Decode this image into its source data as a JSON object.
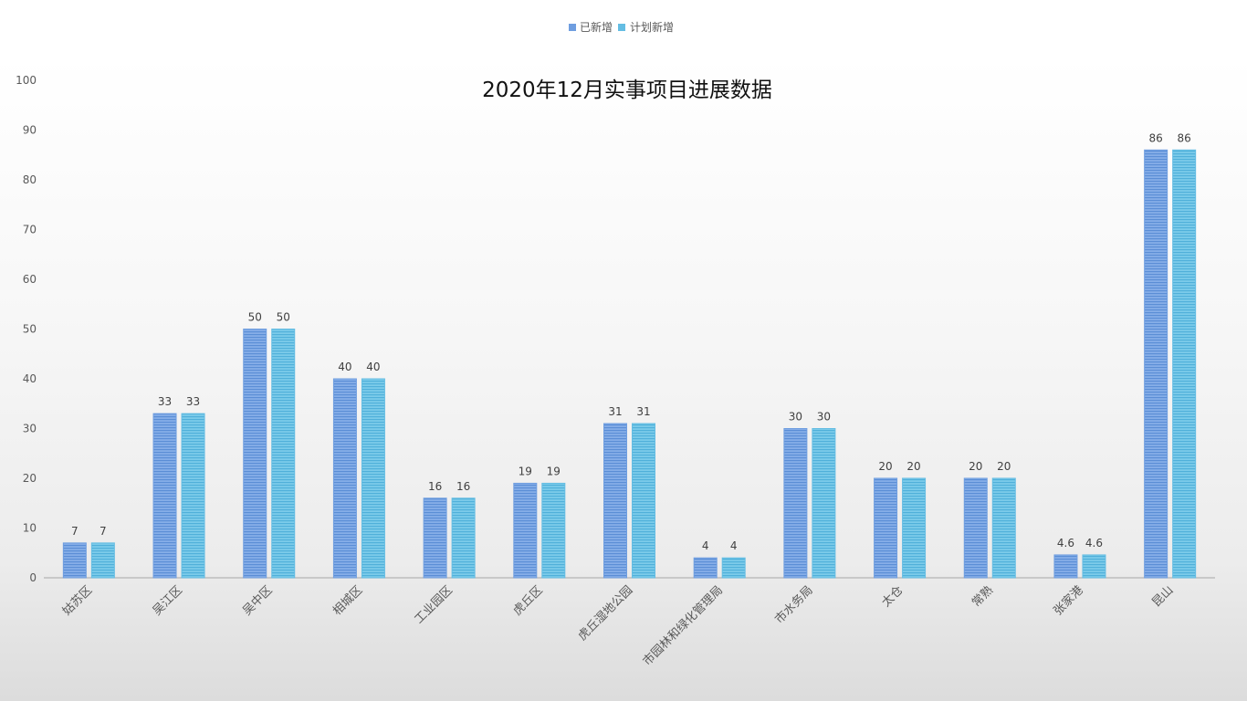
{
  "chart_data": {
    "type": "bar",
    "title": "2020年12月实事项目进展数据",
    "xlabel": "",
    "ylabel": "",
    "ylim": [
      0,
      100
    ],
    "yticks": [
      0,
      10,
      20,
      30,
      40,
      50,
      60,
      70,
      80,
      90,
      100
    ],
    "grid": false,
    "legend_position": "top-center",
    "categories": [
      "姑苏区",
      "吴江区",
      "吴中区",
      "相城区",
      "工业园区",
      "虎丘区",
      "虎丘湿地公园",
      "市园林和绿化管理局",
      "市水务局",
      "太仓",
      "常熟",
      "张家港",
      "昆山"
    ],
    "series": [
      {
        "name": "已新增",
        "color": "#6f9ee0",
        "values": [
          7,
          33,
          50,
          40,
          16,
          19,
          31,
          4,
          30,
          20,
          20,
          4.6,
          86
        ]
      },
      {
        "name": "计划新增",
        "color": "#64bde3",
        "values": [
          7,
          33,
          50,
          40,
          16,
          19,
          31,
          4,
          30,
          20,
          20,
          4.6,
          86
        ]
      }
    ]
  }
}
